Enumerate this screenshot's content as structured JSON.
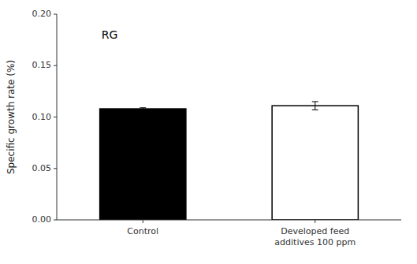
{
  "chart_data": {
    "type": "bar",
    "categories": [
      "Control",
      "Developed feed\nadditives 100 ppm"
    ],
    "values": [
      0.108,
      0.111
    ],
    "errors": [
      0.001,
      0.004
    ],
    "colors": [
      "#000000",
      "#ffffff"
    ],
    "y_label": "Specific growth rate (%)",
    "ylim": [
      0.0,
      0.2
    ],
    "yticks": [
      {
        "value": 0.0,
        "label": "0.00"
      },
      {
        "value": 0.05,
        "label": "0.05"
      },
      {
        "value": 0.1,
        "label": "0.10"
      },
      {
        "value": 0.15,
        "label": "0.15"
      },
      {
        "value": 0.2,
        "label": "0.20"
      }
    ],
    "annotations": [
      "RG"
    ],
    "grid": false
  }
}
